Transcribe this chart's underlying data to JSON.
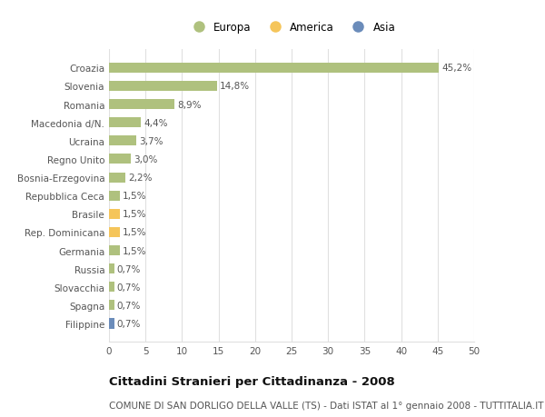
{
  "categories": [
    "Filippine",
    "Spagna",
    "Slovacchia",
    "Russia",
    "Germania",
    "Rep. Dominicana",
    "Brasile",
    "Repubblica Ceca",
    "Bosnia-Erzegovina",
    "Regno Unito",
    "Ucraina",
    "Macedonia d/N.",
    "Romania",
    "Slovenia",
    "Croazia"
  ],
  "values": [
    0.7,
    0.7,
    0.7,
    0.7,
    1.5,
    1.5,
    1.5,
    1.5,
    2.2,
    3.0,
    3.7,
    4.4,
    8.9,
    14.8,
    45.2
  ],
  "colors": [
    "#6b8cba",
    "#afc17e",
    "#afc17e",
    "#afc17e",
    "#afc17e",
    "#f5c55a",
    "#f5c55a",
    "#afc17e",
    "#afc17e",
    "#afc17e",
    "#afc17e",
    "#afc17e",
    "#afc17e",
    "#afc17e",
    "#afc17e"
  ],
  "labels": [
    "0,7%",
    "0,7%",
    "0,7%",
    "0,7%",
    "1,5%",
    "1,5%",
    "1,5%",
    "1,5%",
    "2,2%",
    "3,0%",
    "3,7%",
    "4,4%",
    "8,9%",
    "14,8%",
    "45,2%"
  ],
  "legend": [
    {
      "label": "Europa",
      "color": "#afc17e"
    },
    {
      "label": "America",
      "color": "#f5c55a"
    },
    {
      "label": "Asia",
      "color": "#6b8cba"
    }
  ],
  "xlim": [
    0,
    50
  ],
  "xticks": [
    0,
    5,
    10,
    15,
    20,
    25,
    30,
    35,
    40,
    45,
    50
  ],
  "title": "Cittadini Stranieri per Cittadinanza - 2008",
  "subtitle": "COMUNE DI SAN DORLIGO DELLA VALLE (TS) - Dati ISTAT al 1° gennaio 2008 - TUTTITALIA.IT",
  "background_color": "#ffffff",
  "grid_color": "#e0e0e0",
  "bar_height": 0.55,
  "label_fontsize": 7.5,
  "tick_fontsize": 7.5,
  "title_fontsize": 9.5,
  "subtitle_fontsize": 7.5
}
